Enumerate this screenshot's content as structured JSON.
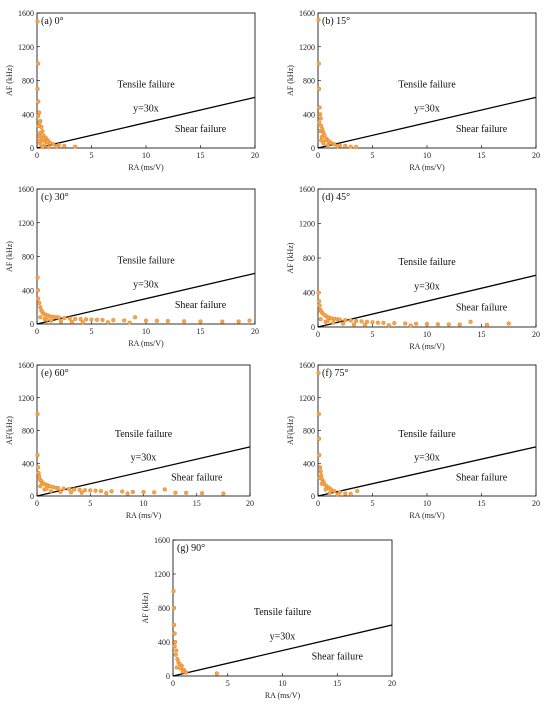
{
  "chart_data": [
    {
      "type": "scatter",
      "panel_label": "(a) 0°",
      "xlabel": "RA (ms/V)",
      "ylabel": "AF (kHz)",
      "xlim": [
        0,
        20
      ],
      "ylim": [
        0,
        1600
      ],
      "xticks": [
        0,
        5,
        10,
        15,
        20
      ],
      "yticks": [
        0,
        400,
        800,
        1200,
        1600
      ],
      "line": {
        "label": "y=30x",
        "slope": 30
      },
      "annotations": {
        "tensile": "Tensile failure",
        "shear": "Shear failure"
      },
      "points": [
        [
          0.05,
          1500
        ],
        [
          0.1,
          1000
        ],
        [
          0.05,
          700
        ],
        [
          0.12,
          550
        ],
        [
          0.2,
          420
        ],
        [
          0.1,
          380
        ],
        [
          0.3,
          320
        ],
        [
          0.25,
          300
        ],
        [
          0.4,
          250
        ],
        [
          0.15,
          260
        ],
        [
          0.5,
          200
        ],
        [
          0.3,
          180
        ],
        [
          0.6,
          150
        ],
        [
          0.2,
          140
        ],
        [
          0.8,
          120
        ],
        [
          0.4,
          110
        ],
        [
          1.0,
          90
        ],
        [
          0.6,
          85
        ],
        [
          0.9,
          70
        ],
        [
          1.2,
          60
        ],
        [
          0.3,
          50
        ],
        [
          1.5,
          45
        ],
        [
          2.0,
          35
        ],
        [
          0.7,
          30
        ],
        [
          2.5,
          25
        ],
        [
          1.8,
          20
        ],
        [
          3.5,
          15
        ],
        [
          0.5,
          10
        ],
        [
          1.1,
          12
        ],
        [
          0.2,
          80
        ]
      ]
    },
    {
      "type": "scatter",
      "panel_label": "(b) 15°",
      "xlabel": "RA (ms/V)",
      "ylabel": "AF (kHz)",
      "xlim": [
        0,
        20
      ],
      "ylim": [
        0,
        1600
      ],
      "xticks": [
        0,
        5,
        10,
        15,
        20
      ],
      "yticks": [
        0,
        400,
        800,
        1200,
        1600
      ],
      "line": {
        "label": "y=30x",
        "slope": 30
      },
      "annotations": {
        "tensile": "Tensile failure",
        "shear": "Shear failure"
      },
      "points": [
        [
          0.05,
          1520
        ],
        [
          0.08,
          1000
        ],
        [
          0.1,
          700
        ],
        [
          0.15,
          480
        ],
        [
          0.2,
          400
        ],
        [
          0.25,
          350
        ],
        [
          0.1,
          300
        ],
        [
          0.3,
          260
        ],
        [
          0.4,
          220
        ],
        [
          0.2,
          200
        ],
        [
          0.5,
          180
        ],
        [
          0.6,
          150
        ],
        [
          0.35,
          130
        ],
        [
          0.8,
          110
        ],
        [
          0.7,
          95
        ],
        [
          1.0,
          80
        ],
        [
          1.2,
          60
        ],
        [
          0.5,
          55
        ],
        [
          1.5,
          45
        ],
        [
          2.0,
          30
        ],
        [
          2.5,
          25
        ],
        [
          1.8,
          20
        ],
        [
          3.0,
          15
        ],
        [
          3.5,
          12
        ],
        [
          0.9,
          35
        ],
        [
          0.3,
          90
        ]
      ]
    },
    {
      "type": "scatter",
      "panel_label": "(c) 30°",
      "xlabel": "RA (ms/V)",
      "ylabel": "AF (kHz)",
      "xlim": [
        0,
        20
      ],
      "ylim": [
        0,
        1600
      ],
      "xticks": [
        0,
        5,
        10,
        15,
        20
      ],
      "yticks": [
        0,
        400,
        800,
        1200,
        1600
      ],
      "line": {
        "label": "y=30x",
        "slope": 30
      },
      "annotations": {
        "tensile": "Tensile failure",
        "shear": "Shear failure"
      },
      "points": [
        [
          0.05,
          550
        ],
        [
          0.1,
          400
        ],
        [
          0.1,
          300
        ],
        [
          0.2,
          250
        ],
        [
          0.3,
          200
        ],
        [
          0.4,
          160
        ],
        [
          0.5,
          140
        ],
        [
          0.6,
          120
        ],
        [
          0.8,
          110
        ],
        [
          1.0,
          100
        ],
        [
          1.2,
          90
        ],
        [
          1.5,
          85
        ],
        [
          1.8,
          80
        ],
        [
          2.0,
          75
        ],
        [
          2.5,
          70
        ],
        [
          3.0,
          65
        ],
        [
          3.5,
          60
        ],
        [
          4.0,
          58
        ],
        [
          4.5,
          55
        ],
        [
          5.0,
          52
        ],
        [
          5.5,
          50
        ],
        [
          6.0,
          48
        ],
        [
          7.0,
          45
        ],
        [
          8.0,
          42
        ],
        [
          9.0,
          80
        ],
        [
          10.0,
          40
        ],
        [
          11.0,
          38
        ],
        [
          12.0,
          35
        ],
        [
          13.5,
          32
        ],
        [
          15.0,
          30
        ],
        [
          17.0,
          28
        ],
        [
          18.5,
          30
        ],
        [
          19.5,
          40
        ],
        [
          0.7,
          60
        ],
        [
          1.3,
          40
        ],
        [
          2.2,
          30
        ],
        [
          3.2,
          25
        ],
        [
          4.2,
          20
        ],
        [
          6.5,
          20
        ],
        [
          8.5,
          15
        ],
        [
          0.3,
          80
        ],
        [
          0.9,
          50
        ]
      ]
    },
    {
      "type": "scatter",
      "panel_label": "(d) 45°",
      "xlabel": "RA (ms/V)",
      "ylabel": "AF (kHz)",
      "xlim": [
        0,
        20
      ],
      "ylim": [
        0,
        1600
      ],
      "xticks": [
        0,
        5,
        10,
        15,
        20
      ],
      "yticks": [
        0,
        400,
        800,
        1200,
        1600
      ],
      "line": {
        "label": "y=30x",
        "slope": 30
      },
      "annotations": {
        "tensile": "Tensile failure",
        "shear": "Shear failure"
      },
      "points": [
        [
          0.05,
          400
        ],
        [
          0.1,
          300
        ],
        [
          0.15,
          250
        ],
        [
          0.2,
          200
        ],
        [
          0.3,
          180
        ],
        [
          0.4,
          160
        ],
        [
          0.6,
          140
        ],
        [
          0.8,
          120
        ],
        [
          1.0,
          110
        ],
        [
          1.2,
          100
        ],
        [
          1.5,
          95
        ],
        [
          1.8,
          90
        ],
        [
          2.0,
          85
        ],
        [
          2.5,
          80
        ],
        [
          3.0,
          75
        ],
        [
          3.5,
          70
        ],
        [
          4.0,
          65
        ],
        [
          4.5,
          60
        ],
        [
          5.0,
          55
        ],
        [
          5.5,
          50
        ],
        [
          6.0,
          48
        ],
        [
          7.0,
          45
        ],
        [
          8.0,
          40
        ],
        [
          9.0,
          38
        ],
        [
          10.0,
          35
        ],
        [
          11.0,
          32
        ],
        [
          12.0,
          30
        ],
        [
          13.0,
          28
        ],
        [
          14.0,
          60
        ],
        [
          15.5,
          25
        ],
        [
          17.5,
          40
        ],
        [
          0.7,
          60
        ],
        [
          1.4,
          50
        ],
        [
          2.3,
          40
        ],
        [
          3.3,
          30
        ],
        [
          4.3,
          25
        ],
        [
          6.5,
          20
        ],
        [
          8.5,
          18
        ],
        [
          0.25,
          90
        ],
        [
          0.9,
          70
        ]
      ]
    },
    {
      "type": "scatter",
      "panel_label": "(e) 60°",
      "xlabel": "RA (ms/V)",
      "ylabel": "AF(kHz)",
      "xlim": [
        0,
        20
      ],
      "ylim": [
        0,
        1600
      ],
      "xticks": [
        0,
        5,
        10,
        15,
        20
      ],
      "yticks": [
        0,
        400,
        800,
        1200,
        1600
      ],
      "line": {
        "label": "y=30x",
        "slope": 30
      },
      "annotations": {
        "tensile": "Tensile failure",
        "shear": "Shear failure"
      },
      "points": [
        [
          0.05,
          1000
        ],
        [
          0.05,
          500
        ],
        [
          0.1,
          350
        ],
        [
          0.15,
          280
        ],
        [
          0.2,
          240
        ],
        [
          0.3,
          200
        ],
        [
          0.4,
          180
        ],
        [
          0.5,
          160
        ],
        [
          0.6,
          150
        ],
        [
          0.8,
          140
        ],
        [
          1.0,
          130
        ],
        [
          1.2,
          120
        ],
        [
          1.5,
          110
        ],
        [
          1.8,
          100
        ],
        [
          2.0,
          95
        ],
        [
          2.5,
          90
        ],
        [
          3.0,
          85
        ],
        [
          3.5,
          80
        ],
        [
          4.0,
          75
        ],
        [
          4.5,
          70
        ],
        [
          5.0,
          68
        ],
        [
          5.5,
          65
        ],
        [
          6.0,
          60
        ],
        [
          7.0,
          58
        ],
        [
          8.0,
          55
        ],
        [
          9.0,
          50
        ],
        [
          10.0,
          48
        ],
        [
          11.0,
          45
        ],
        [
          12.0,
          80
        ],
        [
          13.0,
          40
        ],
        [
          14.0,
          38
        ],
        [
          15.5,
          35
        ],
        [
          17.5,
          30
        ],
        [
          0.7,
          80
        ],
        [
          1.3,
          60
        ],
        [
          2.2,
          50
        ],
        [
          3.2,
          45
        ],
        [
          4.2,
          40
        ],
        [
          6.5,
          35
        ],
        [
          8.5,
          30
        ],
        [
          0.3,
          120
        ],
        [
          0.9,
          90
        ]
      ]
    },
    {
      "type": "scatter",
      "panel_label": "(f) 75°",
      "xlabel": "RA (ms/V)",
      "ylabel": "AF(kHz)",
      "xlim": [
        0,
        20
      ],
      "ylim": [
        0,
        1600
      ],
      "xticks": [
        0,
        5,
        10,
        15,
        20
      ],
      "yticks": [
        0,
        400,
        800,
        1200,
        1600
      ],
      "line": {
        "label": "y=30x",
        "slope": 30
      },
      "annotations": {
        "tensile": "Tensile failure",
        "shear": "Shear failure"
      },
      "points": [
        [
          0.05,
          1500
        ],
        [
          0.08,
          1000
        ],
        [
          0.1,
          700
        ],
        [
          0.12,
          500
        ],
        [
          0.2,
          350
        ],
        [
          0.25,
          300
        ],
        [
          0.3,
          250
        ],
        [
          0.4,
          200
        ],
        [
          0.5,
          170
        ],
        [
          0.6,
          140
        ],
        [
          0.8,
          120
        ],
        [
          1.0,
          100
        ],
        [
          1.2,
          80
        ],
        [
          1.5,
          60
        ],
        [
          2.0,
          45
        ],
        [
          2.5,
          30
        ],
        [
          3.0,
          25
        ],
        [
          3.6,
          60
        ],
        [
          0.35,
          150
        ],
        [
          0.7,
          80
        ],
        [
          1.1,
          40
        ],
        [
          1.8,
          20
        ],
        [
          0.15,
          220
        ]
      ]
    },
    {
      "type": "scatter",
      "panel_label": "(g) 90°",
      "xlabel": "RA (ms/V)",
      "ylabel": "AF (kHz)",
      "xlim": [
        0,
        20
      ],
      "ylim": [
        0,
        1600
      ],
      "xticks": [
        0,
        5,
        10,
        15,
        20
      ],
      "yticks": [
        0,
        400,
        800,
        1200,
        1600
      ],
      "line": {
        "label": "y=30x",
        "slope": 30
      },
      "annotations": {
        "tensile": "Tensile failure",
        "shear": "Shear failure"
      },
      "points": [
        [
          0.05,
          1000
        ],
        [
          0.1,
          800
        ],
        [
          0.1,
          600
        ],
        [
          0.15,
          500
        ],
        [
          0.2,
          400
        ],
        [
          0.3,
          300
        ],
        [
          0.25,
          250
        ],
        [
          0.4,
          200
        ],
        [
          0.5,
          160
        ],
        [
          0.6,
          140
        ],
        [
          0.8,
          120
        ],
        [
          0.7,
          90
        ],
        [
          1.0,
          70
        ],
        [
          0.9,
          50
        ],
        [
          1.2,
          40
        ],
        [
          0.35,
          100
        ],
        [
          4.0,
          30
        ],
        [
          0.15,
          350
        ]
      ]
    }
  ],
  "colors": {
    "point_fill": "#f5a54a",
    "point_stroke": "#e07b16",
    "line": "#000000",
    "axis": "#000000"
  }
}
